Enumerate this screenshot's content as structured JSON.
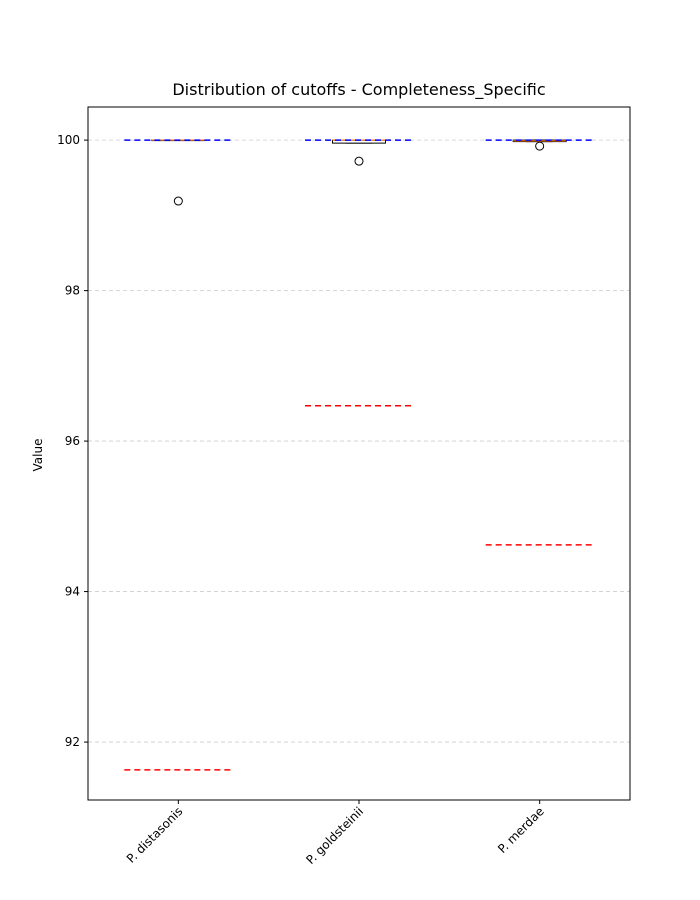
{
  "chart_data": {
    "type": "box",
    "title": "Distribution of cutoffs - Completeness_Specific",
    "ylabel": "Value",
    "categories": [
      "P. distasonis",
      "P. goldsteinii",
      "P. merdae"
    ],
    "boxes": [
      {
        "min": 100,
        "q1": 100,
        "median": 100,
        "q3": 100,
        "max": 100,
        "outliers": [
          99.19
        ]
      },
      {
        "min": 99.96,
        "q1": 99.96,
        "median": 100,
        "q3": 100,
        "max": 100,
        "outliers": [
          99.72
        ]
      },
      {
        "min": 99.98,
        "q1": 99.98,
        "median": 99.99,
        "q3": 100,
        "max": 100,
        "outliers": [
          99.92
        ]
      }
    ],
    "upper_lines": {
      "color": "blue",
      "values": [
        100,
        100,
        100
      ]
    },
    "lower_lines": {
      "color": "red",
      "values": [
        91.63,
        96.47,
        94.62
      ]
    },
    "median_color": "#ff7f0e",
    "ylim": [
      91.23,
      100.44
    ],
    "yticks": [
      92,
      94,
      96,
      98,
      100
    ],
    "grid": true
  }
}
